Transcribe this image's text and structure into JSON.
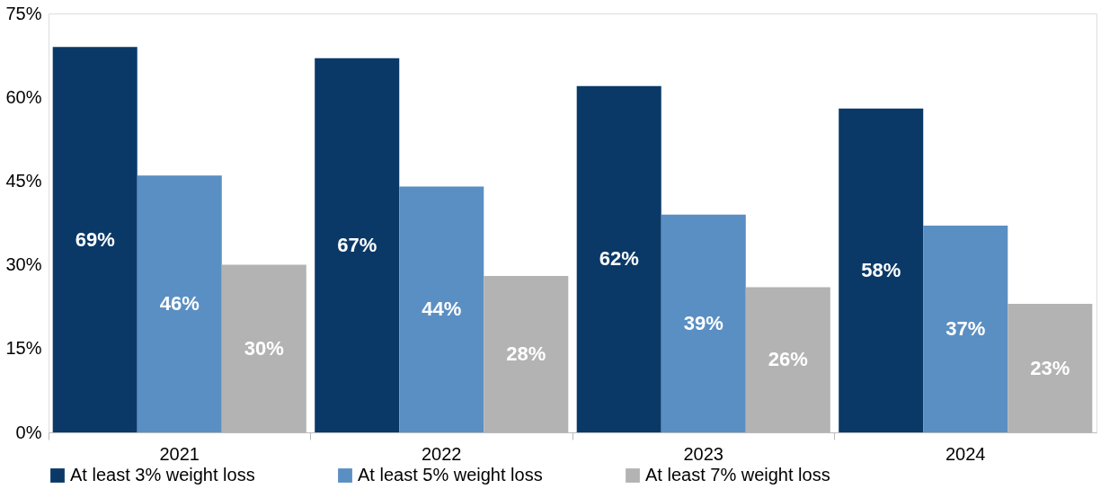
{
  "chart_data": {
    "type": "bar",
    "categories": [
      "2021",
      "2022",
      "2023",
      "2024"
    ],
    "series": [
      {
        "name": "At least 3% weight loss",
        "color": "#0a3968",
        "values": [
          69,
          67,
          62,
          58
        ],
        "value_labels": [
          "69%",
          "67%",
          "62%",
          "58%"
        ]
      },
      {
        "name": "At least 5% weight loss",
        "color": "#5a8fc3",
        "values": [
          46,
          44,
          39,
          37
        ],
        "value_labels": [
          "46%",
          "44%",
          "39%",
          "37%"
        ]
      },
      {
        "name": "At least 7% weight loss",
        "color": "#b3b3b3",
        "values": [
          30,
          28,
          26,
          23
        ],
        "value_labels": [
          "30%",
          "28%",
          "26%",
          "23%"
        ]
      }
    ],
    "ylim": [
      0,
      75
    ],
    "yticks": [
      {
        "value": 0,
        "label": "0%"
      },
      {
        "value": 15,
        "label": "15%"
      },
      {
        "value": 30,
        "label": "30%"
      },
      {
        "value": 45,
        "label": "45%"
      },
      {
        "value": 60,
        "label": "60%"
      },
      {
        "value": 75,
        "label": "75%"
      }
    ],
    "grid": false,
    "legend": "bottom"
  }
}
